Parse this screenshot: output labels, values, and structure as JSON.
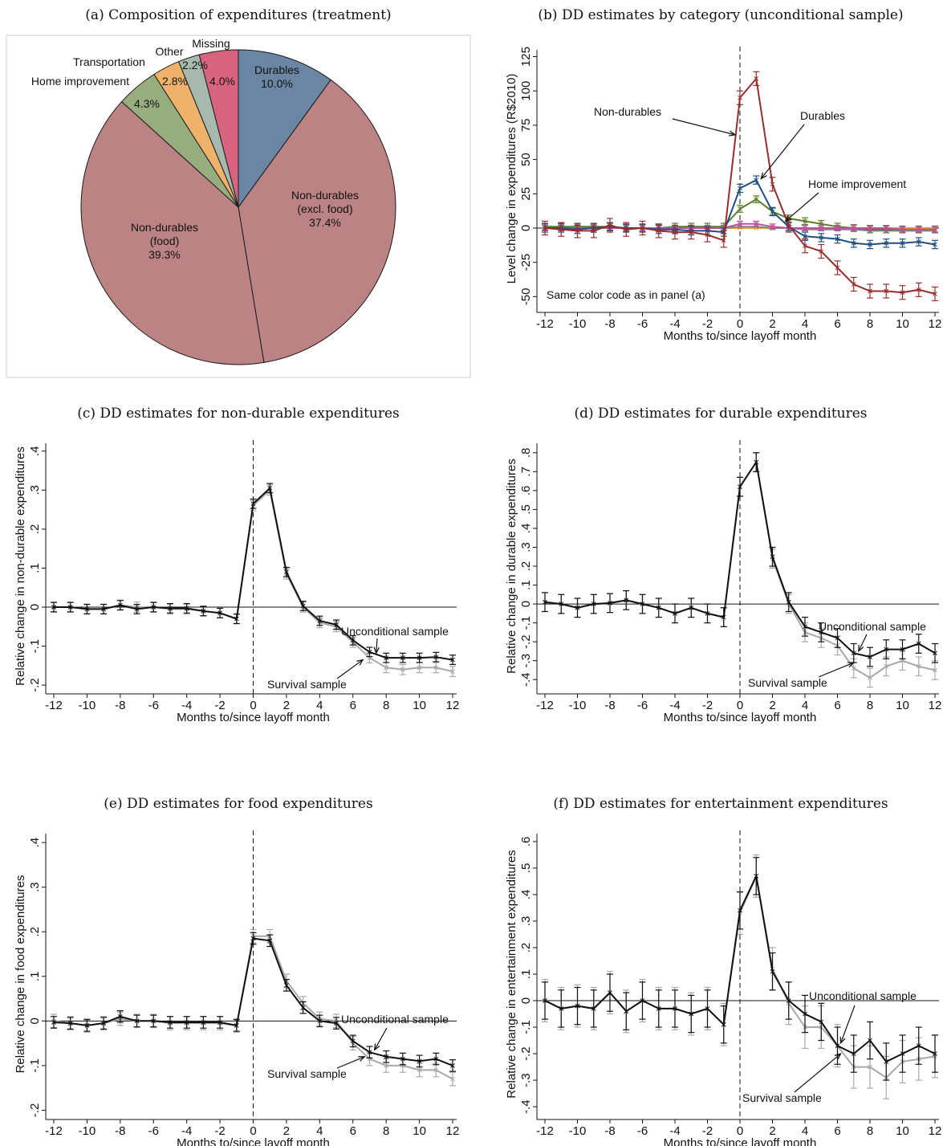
{
  "x_ticks": [
    "-12",
    "-10",
    "-8",
    "-6",
    "-4",
    "-2",
    "0",
    "2",
    "4",
    "6",
    "8",
    "10",
    "12"
  ],
  "x_label": "Months to/since layoff month",
  "chart_data": [
    {
      "id": "a",
      "type": "pie",
      "title": "(a) Composition of expenditures (treatment)",
      "slices": [
        {
          "label": "Durables",
          "pct_label": "10.0%",
          "value": 10.0,
          "color": "#6b86a3"
        },
        {
          "label": "Non-durables (excl. food)",
          "label_lines": [
            "Non-durables",
            "(excl. food)"
          ],
          "pct_label": "37.4%",
          "value": 37.4,
          "color": "#bc8384"
        },
        {
          "label": "Non-durables (food)",
          "label_lines": [
            "Non-durables",
            "(food)"
          ],
          "pct_label": "39.3%",
          "value": 39.3,
          "color": "#bc8384"
        },
        {
          "label": "Home improvement",
          "pct_label": "4.3%",
          "value": 4.3,
          "color": "#97ad7e"
        },
        {
          "label": "Transportation",
          "pct_label": "2.8%",
          "value": 2.8,
          "color": "#efb26a"
        },
        {
          "label": "Other",
          "pct_label": "2.2%",
          "value": 2.2,
          "color": "#a7b8ae"
        },
        {
          "label": "Missing",
          "pct_label": "4.0%",
          "value": 4.0,
          "color": "#d9647f"
        }
      ]
    },
    {
      "id": "b",
      "type": "line",
      "title": "(b) DD estimates by category (unconditional sample)",
      "ylabel": "Level change in expenditures (R$2010)",
      "xlabel": "Months to/since layoff month",
      "yticks": [
        125,
        100,
        75,
        50,
        25,
        0,
        -25,
        -50
      ],
      "ytick_labels": [
        "125",
        "100",
        "75",
        "50",
        "25",
        "0",
        "-25",
        "-50"
      ],
      "ylim": [
        -58,
        130
      ],
      "x": [
        -12,
        -11,
        -10,
        -9,
        -8,
        -7,
        -6,
        -5,
        -4,
        -3,
        -2,
        -1,
        0,
        1,
        2,
        3,
        4,
        5,
        6,
        7,
        8,
        9,
        10,
        11,
        12
      ],
      "series": [
        {
          "name": "Transportation",
          "color": "#f0a030",
          "errbar": false,
          "values": [
            0,
            0,
            0,
            0,
            0,
            0,
            0,
            0,
            0,
            0,
            0,
            0,
            0,
            0,
            0,
            0,
            0,
            0,
            0,
            0,
            0,
            0,
            0,
            0,
            0
          ]
        },
        {
          "name": "Other",
          "color": "#7a8a86",
          "errbar": false,
          "values": [
            0,
            0,
            0,
            0,
            0,
            0,
            0,
            0,
            0,
            0,
            0,
            0,
            1,
            1,
            0,
            0,
            -1,
            -1,
            -1,
            -1,
            -2,
            -2,
            -2,
            -2,
            -2
          ]
        },
        {
          "name": "Home improvement",
          "color": "#5a7d28",
          "errbar": true,
          "err": 2.5,
          "values": [
            1,
            1,
            1,
            1,
            1,
            0,
            0,
            0,
            1,
            1,
            1,
            1,
            14,
            21,
            12,
            7,
            5,
            3,
            1,
            0,
            -1,
            -1,
            -1,
            -1,
            -1
          ]
        },
        {
          "name": "Missing",
          "color": "#c04fa0",
          "errbar": true,
          "err": 2,
          "values": [
            0,
            0,
            0,
            0,
            0,
            0,
            0,
            0,
            0,
            0,
            0,
            0,
            3,
            3,
            1,
            0,
            0,
            0,
            0,
            0,
            0,
            0,
            -1,
            -1,
            -1
          ]
        },
        {
          "name": "Durables",
          "color": "#1d5080",
          "errbar": true,
          "err": 3,
          "values": [
            0,
            0,
            -1,
            0,
            1,
            0,
            0,
            -1,
            -1,
            -2,
            -2,
            -3,
            29,
            35,
            12,
            1,
            -6,
            -7,
            -8,
            -11,
            -12,
            -11,
            -11,
            -10,
            -12
          ]
        },
        {
          "name": "Non-durables",
          "color": "#9a2d2d",
          "errbar": true,
          "err": 5,
          "values": [
            0,
            -1,
            -2,
            -2,
            2,
            -1,
            0,
            -2,
            -3,
            -3,
            -5,
            -9,
            95,
            109,
            32,
            2,
            -13,
            -17,
            -29,
            -41,
            -46,
            -46,
            -47,
            -45,
            -48
          ]
        }
      ],
      "annotations": [
        {
          "text": "Non-durables",
          "type": "arrow"
        },
        {
          "text": "Durables",
          "type": "arrow"
        },
        {
          "text": "Home improvement",
          "type": "arrow"
        },
        {
          "text": "Same color code as in panel (a)",
          "type": "note"
        }
      ]
    },
    {
      "id": "c",
      "type": "line",
      "title": "(c) DD estimates for non-durable expenditures",
      "ylabel": "Relative change in non-durable expenditures",
      "xlabel": "Months to/since layoff month",
      "yticks": [
        0.4,
        0.3,
        0.2,
        0.1,
        0,
        -0.1,
        -0.2
      ],
      "ytick_labels": [
        ".4",
        ".3",
        ".2",
        ".1",
        "0",
        "-.1",
        "-.2"
      ],
      "ylim": [
        -0.21,
        0.42
      ],
      "x": [
        -12,
        -11,
        -10,
        -9,
        -8,
        -7,
        -6,
        -5,
        -4,
        -3,
        -2,
        -1,
        0,
        1,
        2,
        3,
        4,
        5,
        6,
        7,
        8,
        9,
        10,
        11,
        12
      ],
      "series": [
        {
          "name": "Survival sample",
          "color": "#a8a8a8",
          "err": 0.013,
          "values": [
            0,
            0,
            -0.005,
            -0.005,
            0.005,
            0,
            0,
            -0.005,
            -0.005,
            -0.01,
            -0.015,
            -0.03,
            0.26,
            0.3,
            0.085,
            0,
            -0.04,
            -0.05,
            -0.09,
            -0.13,
            -0.155,
            -0.16,
            -0.155,
            -0.155,
            -0.165
          ]
        },
        {
          "name": "Unconditional sample",
          "color": "#111111",
          "err": 0.012,
          "values": [
            0,
            0,
            -0.005,
            -0.005,
            0.005,
            -0.005,
            0,
            -0.003,
            -0.003,
            -0.01,
            -0.015,
            -0.03,
            0.265,
            0.305,
            0.09,
            0.003,
            -0.035,
            -0.045,
            -0.085,
            -0.115,
            -0.13,
            -0.13,
            -0.13,
            -0.128,
            -0.135
          ]
        }
      ],
      "annotations": [
        {
          "text": "Unconditional sample",
          "type": "arrow"
        },
        {
          "text": "Survival sample",
          "type": "arrow"
        }
      ]
    },
    {
      "id": "d",
      "type": "line",
      "title": "(d) DD estimates for durable expenditures",
      "ylabel": "Relative change in durable expenditures",
      "xlabel": "Months to/since layoff month",
      "yticks": [
        0.8,
        0.7,
        0.6,
        0.5,
        0.4,
        0.3,
        0.2,
        0.1,
        0,
        -0.1,
        -0.2,
        -0.3,
        -0.4
      ],
      "ytick_labels": [
        ".8",
        ".7",
        ".6",
        ".5",
        ".4",
        ".3",
        ".2",
        ".1",
        "0",
        "-.1",
        "-.2",
        "-.3",
        "-.4"
      ],
      "ylim": [
        -0.45,
        0.85
      ],
      "x": [
        -12,
        -11,
        -10,
        -9,
        -8,
        -7,
        -6,
        -5,
        -4,
        -3,
        -2,
        -1,
        0,
        1,
        2,
        3,
        4,
        5,
        6,
        7,
        8,
        9,
        10,
        11,
        12
      ],
      "series": [
        {
          "name": "Survival sample",
          "color": "#a8a8a8",
          "err": 0.05,
          "values": [
            0.01,
            0,
            -0.02,
            0,
            0.005,
            0.02,
            0,
            -0.02,
            -0.05,
            -0.02,
            -0.05,
            -0.07,
            0.62,
            0.75,
            0.24,
            0,
            -0.15,
            -0.18,
            -0.22,
            -0.34,
            -0.39,
            -0.33,
            -0.3,
            -0.33,
            -0.35
          ]
        },
        {
          "name": "Unconditional sample",
          "color": "#111111",
          "err": 0.05,
          "values": [
            0.01,
            0,
            -0.02,
            0,
            0.005,
            0.02,
            0,
            -0.02,
            -0.05,
            -0.02,
            -0.05,
            -0.07,
            0.62,
            0.75,
            0.25,
            0.01,
            -0.12,
            -0.15,
            -0.18,
            -0.26,
            -0.28,
            -0.24,
            -0.24,
            -0.21,
            -0.26
          ]
        }
      ],
      "annotations": [
        {
          "text": "Unconditional sample",
          "type": "arrow"
        },
        {
          "text": "Survival sample",
          "type": "arrow"
        }
      ]
    },
    {
      "id": "e",
      "type": "line",
      "title": "(e) DD estimates for food expenditures",
      "ylabel": "Relative change in food expenditures",
      "xlabel": "Months to/since layoff month",
      "yticks": [
        0.4,
        0.3,
        0.2,
        0.1,
        0,
        -0.1,
        -0.2
      ],
      "ytick_labels": [
        ".4",
        ".3",
        ".2",
        ".1",
        "0",
        "-.1",
        "-.2"
      ],
      "ylim": [
        -0.21,
        0.42
      ],
      "x": [
        -12,
        -11,
        -10,
        -9,
        -8,
        -7,
        -6,
        -5,
        -4,
        -3,
        -2,
        -1,
        0,
        1,
        2,
        3,
        4,
        5,
        6,
        7,
        8,
        9,
        10,
        11,
        12
      ],
      "series": [
        {
          "name": "Survival sample",
          "color": "#a8a8a8",
          "err": 0.015,
          "values": [
            0,
            -0.005,
            -0.01,
            -0.005,
            0.005,
            0,
            0,
            -0.005,
            -0.005,
            -0.005,
            -0.005,
            -0.01,
            0.19,
            0.19,
            0.09,
            0.04,
            0.005,
            0,
            -0.05,
            -0.085,
            -0.1,
            -0.1,
            -0.11,
            -0.11,
            -0.13
          ]
        },
        {
          "name": "Unconditional sample",
          "color": "#111111",
          "err": 0.013,
          "values": [
            -0.003,
            -0.005,
            -0.01,
            -0.005,
            0.01,
            0,
            0,
            -0.003,
            -0.003,
            -0.003,
            -0.003,
            -0.01,
            0.185,
            0.18,
            0.08,
            0.03,
            0,
            -0.005,
            -0.045,
            -0.07,
            -0.08,
            -0.085,
            -0.09,
            -0.085,
            -0.1
          ]
        }
      ],
      "annotations": [
        {
          "text": "Unconditional sample",
          "type": "arrow"
        },
        {
          "text": "Survival sample",
          "type": "arrow"
        }
      ]
    },
    {
      "id": "f",
      "type": "line",
      "title": "(f) DD estimates for entertainment expenditures",
      "ylabel": "Relative change in entertainment expenditures",
      "xlabel": "Months to/since layoff month",
      "yticks": [
        0.6,
        0.5,
        0.4,
        0.3,
        0.2,
        0.1,
        0,
        -0.1,
        -0.2,
        -0.3,
        -0.4
      ],
      "ytick_labels": [
        ".6",
        ".5",
        ".4",
        ".3",
        ".2",
        ".1",
        "0",
        "-.1",
        "-.2",
        "-.3",
        "-.4"
      ],
      "ylim": [
        -0.43,
        0.63
      ],
      "x": [
        -12,
        -11,
        -10,
        -9,
        -8,
        -7,
        -6,
        -5,
        -4,
        -3,
        -2,
        -1,
        0,
        1,
        2,
        3,
        4,
        5,
        6,
        7,
        8,
        9,
        10,
        11,
        12
      ],
      "series": [
        {
          "name": "Survival sample",
          "color": "#a8a8a8",
          "err": 0.08,
          "values": [
            0,
            -0.03,
            -0.02,
            -0.03,
            0.03,
            -0.04,
            0,
            -0.03,
            -0.03,
            -0.05,
            -0.03,
            -0.09,
            0.33,
            0.47,
            0.12,
            -0.01,
            -0.1,
            -0.1,
            -0.17,
            -0.25,
            -0.25,
            -0.29,
            -0.23,
            -0.22,
            -0.21
          ]
        },
        {
          "name": "Unconditional sample",
          "color": "#111111",
          "err": 0.07,
          "values": [
            0,
            -0.03,
            -0.02,
            -0.03,
            0.03,
            -0.04,
            0,
            -0.03,
            -0.03,
            -0.05,
            -0.03,
            -0.09,
            0.34,
            0.47,
            0.11,
            0,
            -0.05,
            -0.08,
            -0.17,
            -0.2,
            -0.15,
            -0.23,
            -0.2,
            -0.17,
            -0.2
          ]
        }
      ],
      "annotations": [
        {
          "text": "Unconditional sample",
          "type": "arrow"
        },
        {
          "text": "Survival sample",
          "type": "arrow"
        }
      ]
    }
  ]
}
